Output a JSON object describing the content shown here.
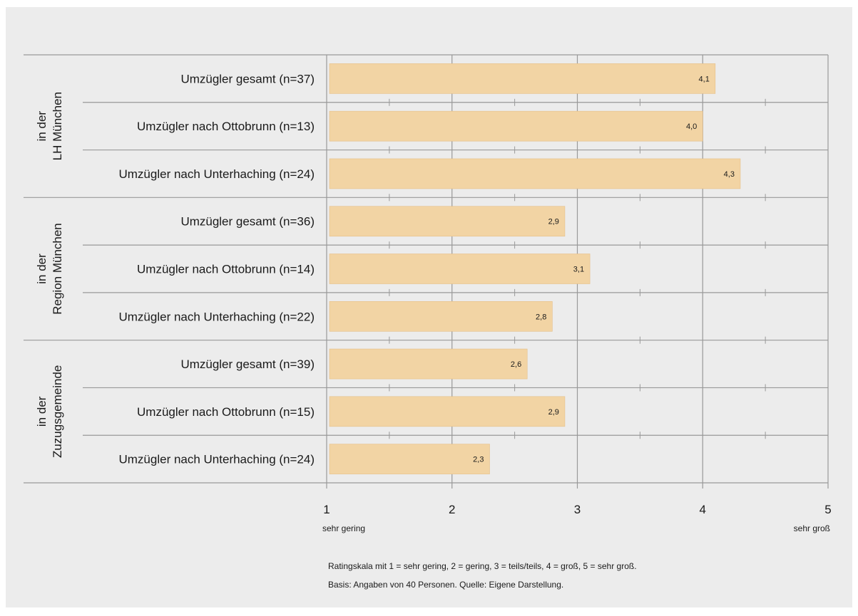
{
  "chart_data": {
    "type": "bar",
    "orientation": "horizontal",
    "groups": [
      {
        "label_lines": [
          "in der",
          "LH München"
        ],
        "items": [
          {
            "label": "Umzügler gesamt (n=37)",
            "value": 4.1,
            "value_label": "4,1"
          },
          {
            "label": "Umzügler nach Ottobrunn  (n=13)",
            "value": 4.0,
            "value_label": "4,0"
          },
          {
            "label": "Umzügler nach Unterhaching  (n=24)",
            "value": 4.3,
            "value_label": "4,3"
          }
        ]
      },
      {
        "label_lines": [
          "in der",
          "Region München"
        ],
        "items": [
          {
            "label": "Umzügler gesamt (n=36)",
            "value": 2.9,
            "value_label": "2,9"
          },
          {
            "label": "Umzügler nach Ottobrunn (n=14)",
            "value": 3.1,
            "value_label": "3,1"
          },
          {
            "label": "Umzügler nach Unterhaching  (n=22)",
            "value": 2.8,
            "value_label": "2,8"
          }
        ]
      },
      {
        "label_lines": [
          "in der",
          "Zuzugsgemeinde"
        ],
        "items": [
          {
            "label": "Umzügler gesamt (n=39)",
            "value": 2.6,
            "value_label": "2,6"
          },
          {
            "label": "Umzügler nach Ottobrunn (n=15)",
            "value": 2.9,
            "value_label": "2,9"
          },
          {
            "label": "Umzügler nach Unterhaching  (n=24)",
            "value": 2.3,
            "value_label": "2,3"
          }
        ]
      }
    ],
    "xlim": [
      1,
      5
    ],
    "xticks": [
      "1",
      "2",
      "3",
      "4",
      "5"
    ],
    "x_low_label": "sehr gering",
    "x_high_label": "sehr groß",
    "grid": true,
    "colors": {
      "bar": "#f2d4a4",
      "bar_border": "#e6bf87",
      "grid": "#999999",
      "background": "#ececec"
    }
  },
  "notes": [
    "Ratingskala  mit 1 = sehr gering, 2 = gering, 3 = teils/teils, 4 = groß, 5 = sehr groß.",
    "Basis: Angaben von 40 Personen. Quelle: Eigene Darstellung."
  ]
}
